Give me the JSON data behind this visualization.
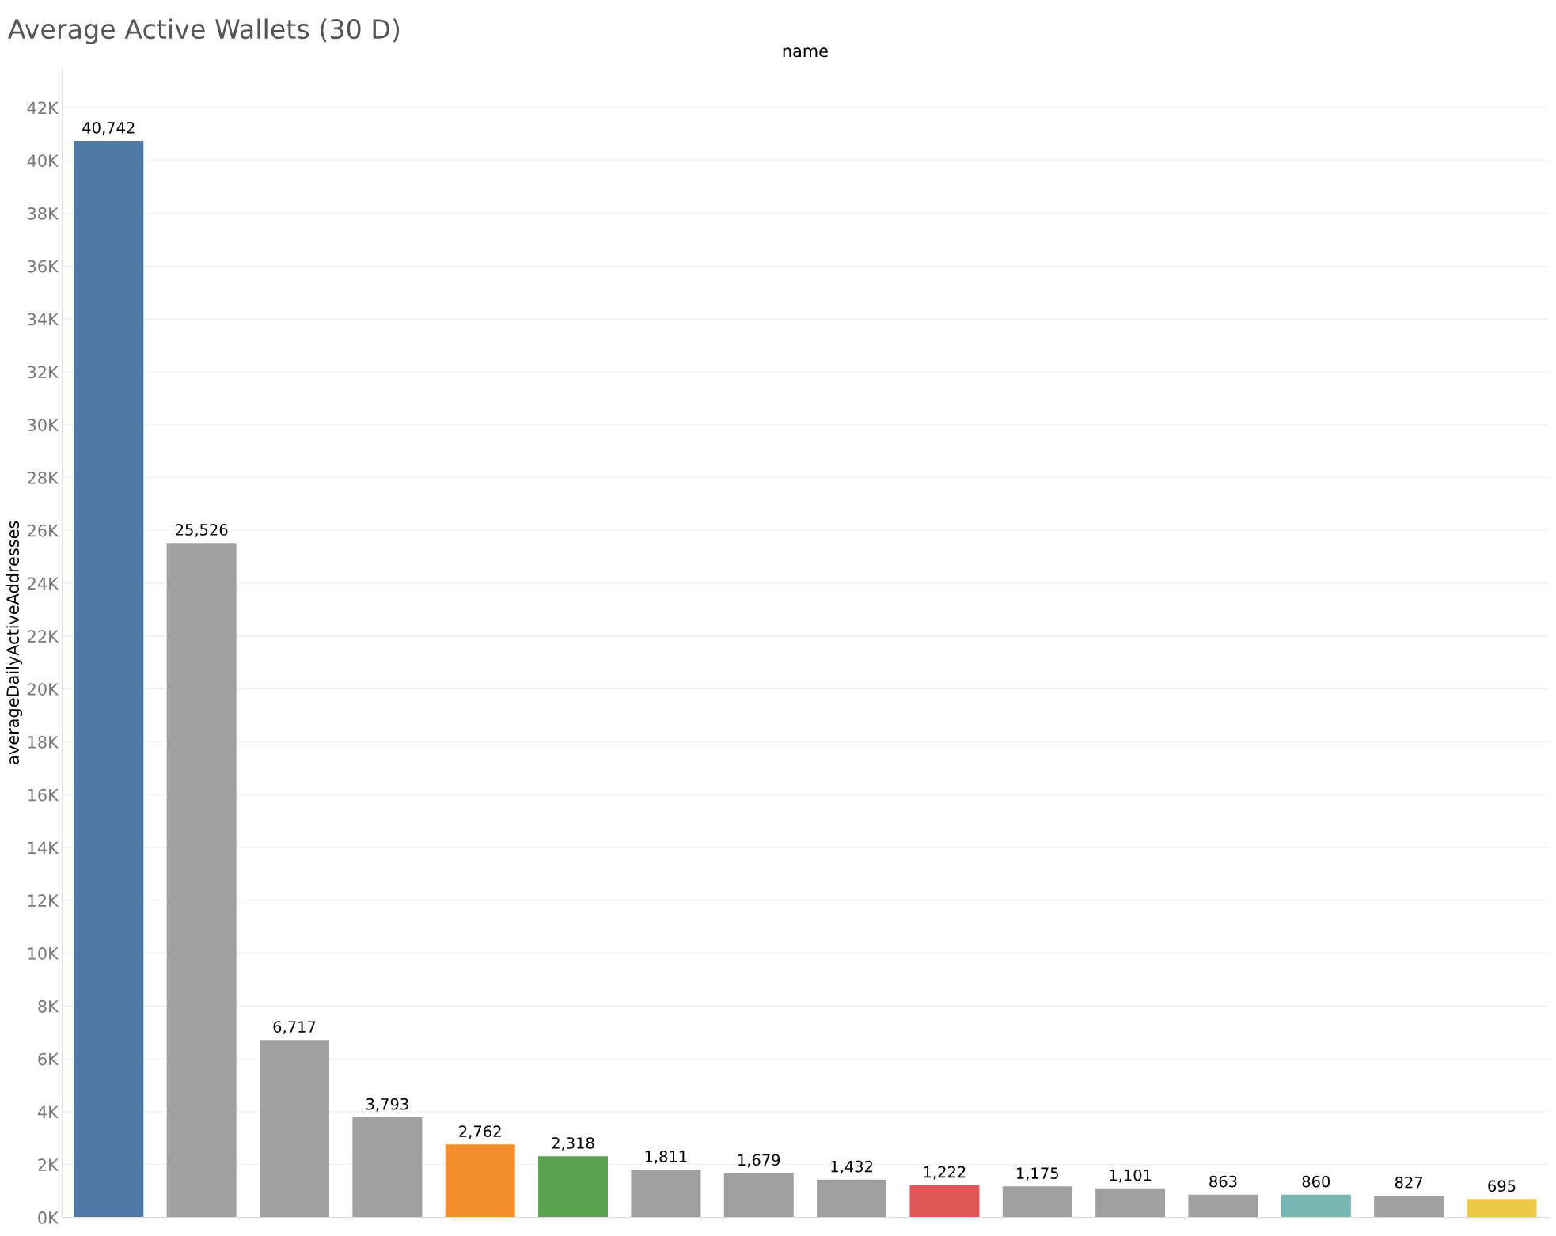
{
  "chart_data": {
    "type": "bar",
    "title": "Average Active Wallets (30 D)",
    "xlabel": "name",
    "ylabel": "averageDailyActiveAddresses",
    "categories": [
      null,
      null,
      null,
      null,
      null,
      null,
      null,
      null,
      null,
      null,
      null,
      null,
      null,
      null,
      null,
      null
    ],
    "values": [
      40742,
      25526,
      6717,
      3793,
      2762,
      2318,
      1811,
      1679,
      1432,
      1222,
      1175,
      1101,
      863,
      860,
      827,
      695
    ],
    "colors": [
      "#4e79a7",
      "#a0a0a0",
      "#a0a0a0",
      "#a0a0a0",
      "#f28e2b",
      "#59a14f",
      "#a0a0a0",
      "#a0a0a0",
      "#a0a0a0",
      "#e15759",
      "#a0a0a0",
      "#a0a0a0",
      "#a0a0a0",
      "#76b7b2",
      "#a0a0a0",
      "#edc948"
    ],
    "value_labels": [
      "40,742",
      "25,526",
      "6,717",
      "3,793",
      "2,762",
      "2,318",
      "1,811",
      "1,679",
      "1,432",
      "1,222",
      "1,175",
      "1,101",
      "863",
      "860",
      "827",
      "695"
    ],
    "ylim": [
      0,
      43500
    ],
    "yticks": [
      {
        "value": 0,
        "label": "0K"
      },
      {
        "value": 2000,
        "label": "2K"
      },
      {
        "value": 4000,
        "label": "4K"
      },
      {
        "value": 6000,
        "label": "6K"
      },
      {
        "value": 8000,
        "label": "8K"
      },
      {
        "value": 10000,
        "label": "10K"
      },
      {
        "value": 12000,
        "label": "12K"
      },
      {
        "value": 14000,
        "label": "14K"
      },
      {
        "value": 16000,
        "label": "16K"
      },
      {
        "value": 18000,
        "label": "18K"
      },
      {
        "value": 20000,
        "label": "20K"
      },
      {
        "value": 22000,
        "label": "22K"
      },
      {
        "value": 24000,
        "label": "24K"
      },
      {
        "value": 26000,
        "label": "26K"
      },
      {
        "value": 28000,
        "label": "28K"
      },
      {
        "value": 30000,
        "label": "30K"
      },
      {
        "value": 32000,
        "label": "32K"
      },
      {
        "value": 34000,
        "label": "34K"
      },
      {
        "value": 36000,
        "label": "36K"
      },
      {
        "value": 38000,
        "label": "38K"
      },
      {
        "value": 40000,
        "label": "40K"
      },
      {
        "value": 42000,
        "label": "42K"
      }
    ],
    "grid": "y",
    "tick_labels": "y"
  }
}
